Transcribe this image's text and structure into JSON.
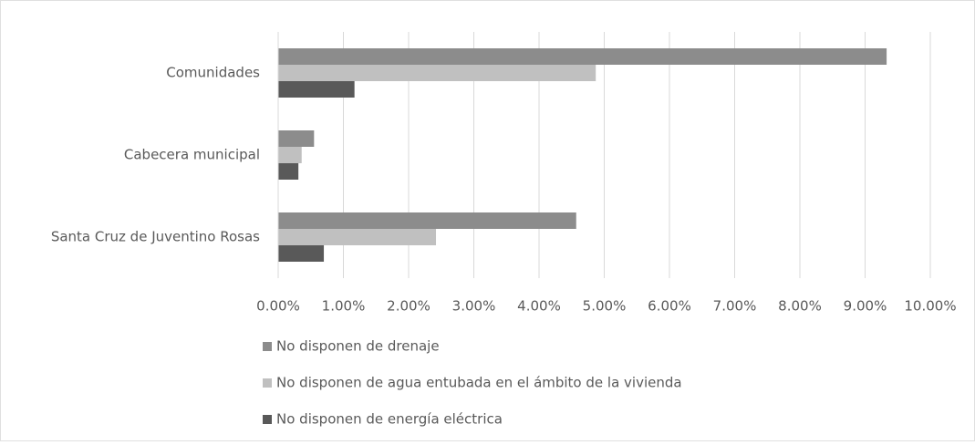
{
  "chart_data": {
    "type": "hbar",
    "categories": [
      "Comunidades",
      "Cabecera municipal",
      "Santa Cruz de Juventino Rosas"
    ],
    "series": [
      {
        "name": "No disponen de drenaje",
        "color": "#8c8c8c",
        "values": [
          9.33,
          0.55,
          4.57
        ]
      },
      {
        "name": "No disponen de agua entubada en el ámbito de la vivienda",
        "color": "#c0c0c0",
        "values": [
          4.87,
          0.36,
          2.42
        ]
      },
      {
        "name": "No disponen de energía eléctrica",
        "color": "#595959",
        "values": [
          1.17,
          0.31,
          0.7
        ]
      }
    ],
    "xlim": [
      0,
      10
    ],
    "xticks": [
      {
        "value": 0,
        "label": "0.00%"
      },
      {
        "value": 1,
        "label": "1.00%"
      },
      {
        "value": 2,
        "label": "2.00%"
      },
      {
        "value": 3,
        "label": "3.00%"
      },
      {
        "value": 4,
        "label": "4.00%"
      },
      {
        "value": 5,
        "label": "5.00%"
      },
      {
        "value": 6,
        "label": "6.00%"
      },
      {
        "value": 7,
        "label": "7.00%"
      },
      {
        "value": 8,
        "label": "8.00%"
      },
      {
        "value": 9,
        "label": "9.00%"
      },
      {
        "value": 10,
        "label": "10.00%"
      }
    ],
    "grid": true,
    "legend": "bottom"
  }
}
